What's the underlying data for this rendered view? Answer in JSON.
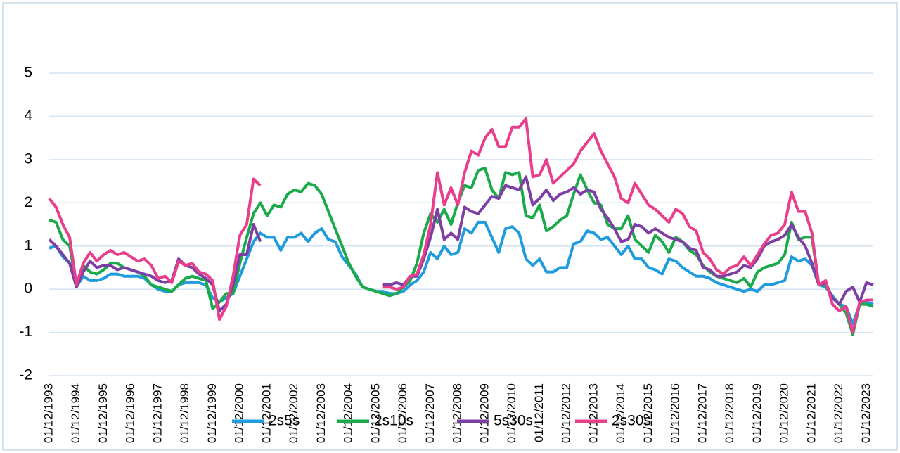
{
  "chart_data": {
    "type": "line",
    "categories": [
      "01/12/1993",
      null,
      null,
      null,
      "01/12/1994",
      null,
      null,
      null,
      "01/12/1995",
      null,
      null,
      null,
      "01/12/1996",
      null,
      null,
      null,
      "01/12/1997",
      null,
      null,
      null,
      "01/12/1998",
      null,
      null,
      null,
      "01/12/1999",
      null,
      null,
      null,
      "01/12/2000",
      null,
      null,
      null,
      "01/12/2001",
      null,
      null,
      null,
      "01/12/2002",
      null,
      null,
      null,
      "01/12/2003",
      null,
      null,
      null,
      "01/12/2004",
      null,
      null,
      null,
      "01/12/2005",
      null,
      null,
      null,
      "01/12/2006",
      null,
      null,
      null,
      "01/12/2007",
      null,
      null,
      null,
      "01/12/2008",
      null,
      null,
      null,
      "01/12/2009",
      null,
      null,
      null,
      "01/12/2010",
      null,
      null,
      null,
      "01/12/2011",
      null,
      null,
      null,
      "01/12/2012",
      null,
      null,
      null,
      "01/12/2013",
      null,
      null,
      null,
      "01/12/2014",
      null,
      null,
      null,
      "01/12/2015",
      null,
      null,
      null,
      "01/12/2016",
      null,
      null,
      null,
      "01/12/2017",
      null,
      null,
      null,
      "01/12/2018",
      null,
      null,
      null,
      "01/12/2019",
      null,
      null,
      null,
      "01/12/2020",
      null,
      null,
      null,
      "01/12/2021",
      null,
      null,
      null,
      "01/12/2022",
      null,
      null,
      null,
      "01/12/2023",
      null
    ],
    "series": [
      {
        "name": "2s5s",
        "color": "#1f9bde",
        "values": [
          0.95,
          1.0,
          0.75,
          0.6,
          0.05,
          0.3,
          0.2,
          0.2,
          0.25,
          0.35,
          0.35,
          0.3,
          0.3,
          0.3,
          0.25,
          0.1,
          0.0,
          -0.05,
          -0.05,
          0.1,
          0.15,
          0.15,
          0.15,
          0.1,
          -0.2,
          -0.3,
          -0.2,
          -0.1,
          0.3,
          0.7,
          1.1,
          1.3,
          1.2,
          1.2,
          0.9,
          1.2,
          1.2,
          1.3,
          1.1,
          1.3,
          1.4,
          1.15,
          1.1,
          0.75,
          0.55,
          0.35,
          0.05,
          0.0,
          -0.05,
          -0.05,
          -0.1,
          -0.1,
          -0.05,
          0.1,
          0.2,
          0.4,
          0.85,
          0.7,
          1.0,
          0.8,
          0.85,
          1.4,
          1.3,
          1.55,
          1.55,
          1.2,
          0.85,
          1.4,
          1.45,
          1.3,
          0.7,
          0.55,
          0.7,
          0.4,
          0.4,
          0.5,
          0.5,
          1.05,
          1.1,
          1.35,
          1.3,
          1.15,
          1.2,
          1.0,
          0.8,
          1.0,
          0.7,
          0.7,
          0.5,
          0.45,
          0.35,
          0.7,
          0.65,
          0.5,
          0.4,
          0.3,
          0.3,
          0.25,
          0.15,
          0.1,
          0.05,
          0.0,
          -0.05,
          0.0,
          -0.05,
          0.1,
          0.1,
          0.15,
          0.2,
          0.75,
          0.65,
          0.7,
          0.55,
          0.1,
          0.05,
          -0.15,
          -0.35,
          -0.4,
          -0.8,
          -0.35,
          -0.3,
          -0.35
        ]
      },
      {
        "name": "2s10s",
        "color": "#1aaa4a",
        "values": [
          1.6,
          1.55,
          1.15,
          1.0,
          0.1,
          0.55,
          0.4,
          0.35,
          0.45,
          0.6,
          0.6,
          0.5,
          0.45,
          0.4,
          0.3,
          0.1,
          0.05,
          0.0,
          -0.05,
          0.1,
          0.25,
          0.3,
          0.25,
          0.2,
          -0.45,
          -0.3,
          -0.1,
          -0.1,
          0.6,
          1.2,
          1.75,
          2.0,
          1.7,
          1.95,
          1.9,
          2.2,
          2.3,
          2.25,
          2.45,
          2.4,
          2.2,
          1.8,
          1.4,
          1.0,
          0.6,
          0.3,
          0.05,
          0.0,
          -0.05,
          -0.1,
          -0.15,
          -0.1,
          0.05,
          0.2,
          0.6,
          1.3,
          1.75,
          1.55,
          1.85,
          1.5,
          2.0,
          2.4,
          2.35,
          2.75,
          2.8,
          2.3,
          2.1,
          2.7,
          2.65,
          2.7,
          1.7,
          1.65,
          1.95,
          1.35,
          1.45,
          1.6,
          1.7,
          2.2,
          2.65,
          2.3,
          2.0,
          1.95,
          1.5,
          1.4,
          1.4,
          1.7,
          1.15,
          1.0,
          0.85,
          1.25,
          1.1,
          0.85,
          1.2,
          1.1,
          0.9,
          0.8,
          0.55,
          0.4,
          0.3,
          0.25,
          0.2,
          0.15,
          0.25,
          0.05,
          0.4,
          0.5,
          0.55,
          0.6,
          0.8,
          1.55,
          1.15,
          1.2,
          1.2,
          0.1,
          0.1,
          -0.2,
          -0.35,
          -0.55,
          -1.05,
          -0.35,
          -0.35,
          -0.4
        ]
      },
      {
        "name": "5s30s",
        "color": "#7e3fa5",
        "values": [
          1.15,
          1.0,
          0.8,
          0.6,
          0.05,
          0.4,
          0.65,
          0.5,
          0.55,
          0.55,
          0.45,
          0.5,
          0.45,
          0.4,
          0.35,
          0.3,
          0.2,
          0.15,
          0.2,
          0.7,
          0.55,
          0.5,
          0.35,
          0.25,
          0.1,
          -0.5,
          -0.35,
          0.1,
          0.8,
          0.8,
          1.5,
          1.1,
          null,
          null,
          null,
          null,
          null,
          null,
          null,
          null,
          null,
          null,
          null,
          null,
          null,
          null,
          null,
          null,
          null,
          0.1,
          0.1,
          0.15,
          0.1,
          0.3,
          0.3,
          0.7,
          1.2,
          1.85,
          1.15,
          1.3,
          1.15,
          1.9,
          1.8,
          1.75,
          1.95,
          2.15,
          2.1,
          2.4,
          2.35,
          2.3,
          2.6,
          1.95,
          2.1,
          2.3,
          2.05,
          2.2,
          2.25,
          2.35,
          2.2,
          2.3,
          2.25,
          1.85,
          1.65,
          1.4,
          1.1,
          1.15,
          1.5,
          1.45,
          1.3,
          1.4,
          1.3,
          1.2,
          1.15,
          1.1,
          0.95,
          0.9,
          0.5,
          0.45,
          0.3,
          0.3,
          0.35,
          0.4,
          0.55,
          0.5,
          0.7,
          1.0,
          1.1,
          1.15,
          1.25,
          1.5,
          1.2,
          1.0,
          0.6,
          0.1,
          0.15,
          -0.2,
          -0.35,
          -0.05,
          0.05,
          -0.3,
          0.15,
          0.1
        ]
      },
      {
        "name": "2s30s",
        "color": "#e83e8c",
        "values": [
          2.1,
          1.9,
          1.5,
          1.2,
          0.1,
          0.6,
          0.85,
          0.65,
          0.8,
          0.9,
          0.8,
          0.85,
          0.75,
          0.65,
          0.7,
          0.55,
          0.25,
          0.3,
          0.15,
          0.65,
          0.55,
          0.6,
          0.4,
          0.35,
          0.2,
          -0.7,
          -0.4,
          0.3,
          1.25,
          1.5,
          2.55,
          2.4,
          null,
          null,
          null,
          null,
          null,
          null,
          null,
          null,
          null,
          null,
          null,
          null,
          null,
          null,
          null,
          null,
          null,
          0.05,
          0.05,
          0.0,
          0.05,
          0.3,
          0.35,
          0.8,
          1.5,
          2.7,
          1.95,
          2.35,
          1.95,
          2.7,
          3.2,
          3.1,
          3.5,
          3.7,
          3.3,
          3.3,
          3.75,
          3.75,
          3.95,
          2.6,
          2.65,
          3.0,
          2.45,
          2.6,
          2.75,
          2.9,
          3.2,
          3.4,
          3.6,
          3.2,
          2.9,
          2.6,
          2.1,
          2.0,
          2.45,
          2.2,
          1.95,
          1.85,
          1.7,
          1.55,
          1.85,
          1.75,
          1.45,
          1.35,
          0.85,
          0.7,
          0.45,
          0.35,
          0.5,
          0.55,
          0.75,
          0.55,
          0.8,
          1.05,
          1.25,
          1.3,
          1.5,
          2.25,
          1.8,
          1.8,
          1.3,
          0.1,
          0.2,
          -0.35,
          -0.5,
          -0.4,
          -1.0,
          -0.3,
          -0.25,
          -0.25
        ]
      }
    ],
    "ylim": [
      -2,
      5
    ],
    "yticks": [
      -2,
      -1,
      0,
      1,
      2,
      3,
      4,
      5
    ],
    "grid": true,
    "legend": "bottom"
  }
}
